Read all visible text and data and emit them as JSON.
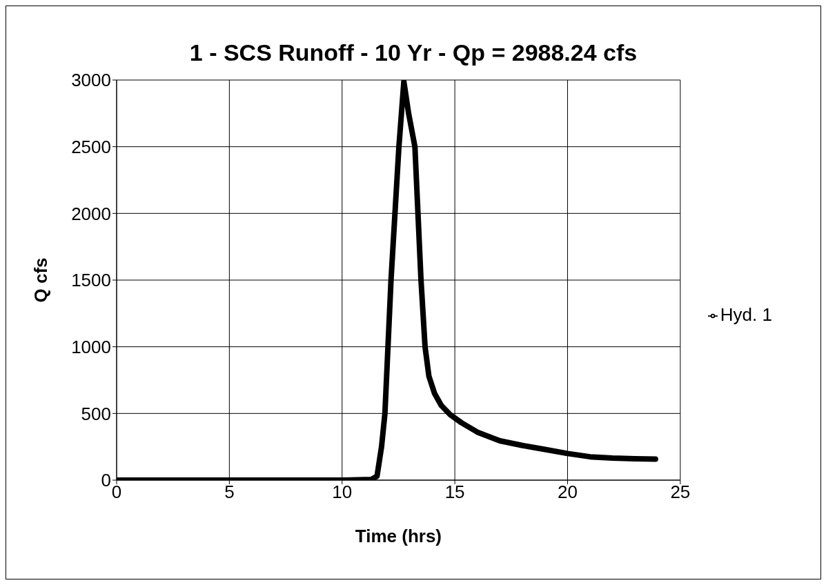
{
  "chart_data": {
    "type": "line",
    "title": "1 - SCS Runoff - 10 Yr - Qp = 2988.24 cfs",
    "xlabel": "Time (hrs)",
    "ylabel": "Q cfs",
    "x": [
      0,
      5,
      10,
      11.3,
      11.55,
      11.75,
      11.9,
      12.17,
      12.52,
      12.74,
      12.95,
      13.23,
      13.5,
      13.68,
      13.85,
      14.1,
      14.4,
      14.8,
      15.3,
      16,
      17,
      18,
      19,
      20,
      21,
      22,
      23,
      23.9
    ],
    "series": [
      {
        "name": "Hyd. 1",
        "color": "#000000",
        "values": [
          0,
          0,
          0,
          5,
          30,
          250,
          500,
          1500,
          2500,
          2988,
          2750,
          2500,
          1500,
          1000,
          780,
          650,
          560,
          490,
          430,
          360,
          295,
          260,
          230,
          200,
          175,
          165,
          160,
          158
        ]
      }
    ],
    "xlim": [
      0,
      25
    ],
    "xticks": [
      0,
      5,
      10,
      15,
      20,
      25
    ],
    "ylim": [
      0,
      3000
    ],
    "yticks": [
      0,
      500,
      1000,
      1500,
      2000,
      2500,
      3000
    ],
    "grid": true,
    "legend": "right",
    "marker": "none",
    "line_style": "solid"
  }
}
